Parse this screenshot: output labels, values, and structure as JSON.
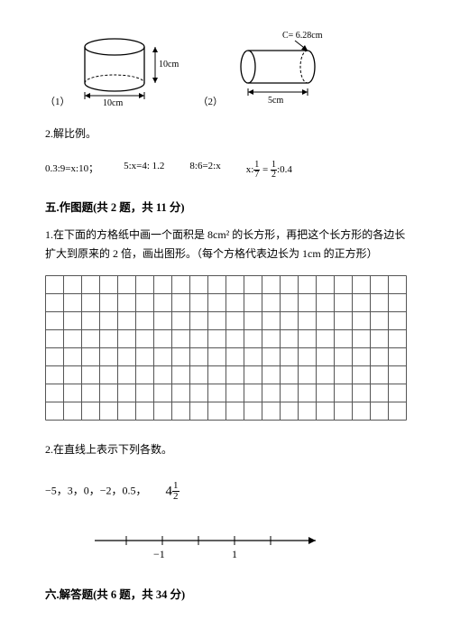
{
  "figures": {
    "fig1": {
      "label": "（1）",
      "width_label": "10cm",
      "height_label": "10cm"
    },
    "fig2": {
      "label": "（2）",
      "length_label": "5cm",
      "circ_label": "C= 6.28cm"
    }
  },
  "q2_label": "2.解比例。",
  "equations": {
    "e1": "0.3:9=x:10；",
    "e2": "5:x=4: 1.2",
    "e3": "8:6=2:x",
    "e4_prefix": "x:",
    "e4_frac1_num": "1",
    "e4_frac1_den": "7",
    "e4_mid": " = ",
    "e4_frac2_num": "1",
    "e4_frac2_den": "2",
    "e4_suffix": ":0.4"
  },
  "section5": {
    "head": "五.作图题(共 2 题，共 11 分)",
    "q1": "1.在下面的方格纸中画一个面积是 8cm² 的长方形，再把这个长方形的各边长扩大到原来的 2 倍，画出图形。（每个方格代表边长为 1cm 的正方形）",
    "q2": "2.在直线上表示下列各数。",
    "values_prefix": "−5，3，0，−2，0.5，　　",
    "mixed_whole": "4",
    "mixed_num": "1",
    "mixed_den": "2",
    "numberline_minus1": "−1",
    "numberline_plus1": "1",
    "grid": {
      "cols": 20,
      "rows": 8,
      "cell": 20,
      "stroke": "#555555"
    }
  },
  "section6": {
    "head": "六.解答题(共 6 题，共 34 分)"
  },
  "colors": {
    "text": "#000000",
    "bg": "#ffffff",
    "line": "#000000"
  }
}
